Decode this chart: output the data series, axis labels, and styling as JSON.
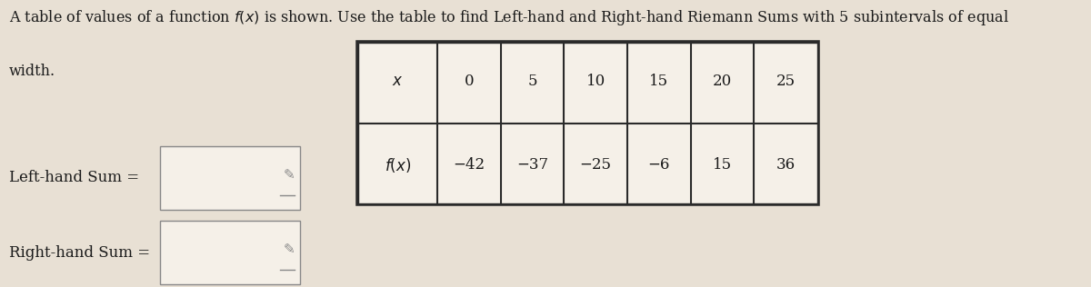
{
  "title_line1": "A table of values of a function $f(x)$ is shown. Use the table to find Left-hand and Right-hand Riemann Sums with 5 subintervals of equal",
  "title_line2": "width.",
  "x_values": [
    "0",
    "5",
    "10",
    "15",
    "20",
    "25"
  ],
  "fx_values": [
    "−42",
    "−37",
    "−25",
    "−6",
    "15",
    "36"
  ],
  "left_label": "Left-hand Sum =",
  "right_label": "Right-hand Sum =",
  "bg_color": "#e8e0d4",
  "table_bg": "#f5f0e8",
  "box_bg": "#f5f0e8",
  "text_color": "#1a1a1a",
  "title_fontsize": 11.5,
  "label_fontsize": 12,
  "table_fontsize": 12
}
